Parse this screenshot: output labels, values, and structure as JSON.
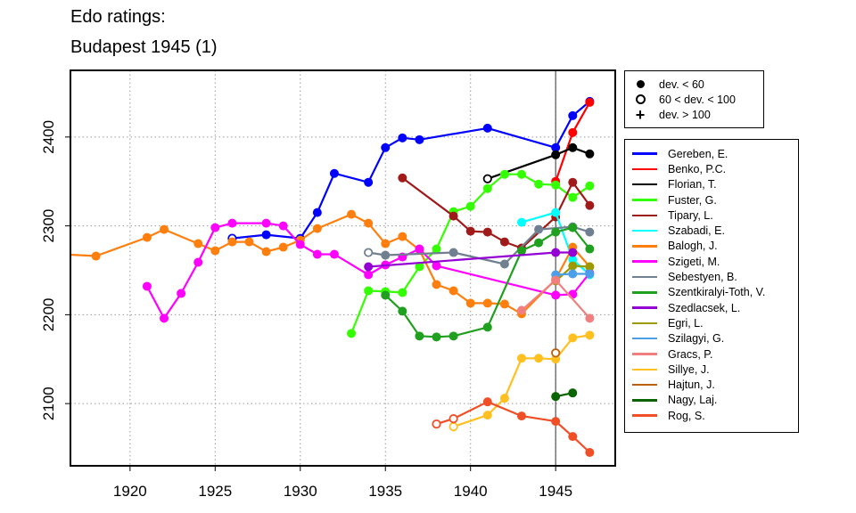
{
  "chart_data": {
    "type": "line",
    "title_lines": [
      "Edo ratings:",
      "Budapest 1945 (1)"
    ],
    "xlabel": "",
    "ylabel": "",
    "xlim": [
      1916.5,
      1948.5
    ],
    "ylim": [
      2030,
      2475
    ],
    "x_ticks": [
      1920,
      1925,
      1930,
      1935,
      1940,
      1945
    ],
    "y_ticks": [
      2100,
      2200,
      2300,
      2400
    ],
    "grid": "dotted",
    "event_year": 1945,
    "point_markers": {
      "filled": "dev. < 60",
      "open": "60 < dev. < 100",
      "plus": "dev. > 100"
    },
    "deviation_legend": [
      "dev. < 60",
      "60 < dev. < 100",
      "dev. > 100"
    ],
    "series": [
      {
        "name": "Gereben, E.",
        "color": "#0000ff",
        "points": [
          [
            1926,
            2286,
            "o"
          ],
          [
            1928,
            2290,
            "f"
          ],
          [
            1930,
            2286,
            "f"
          ],
          [
            1931,
            2315,
            "f"
          ],
          [
            1932,
            2359,
            "f"
          ],
          [
            1934,
            2349,
            "f"
          ],
          [
            1935,
            2388,
            "f"
          ],
          [
            1936,
            2399,
            "f"
          ],
          [
            1937,
            2397,
            "f"
          ],
          [
            1941,
            2410,
            "f"
          ],
          [
            1945,
            2388,
            "f"
          ],
          [
            1946,
            2424,
            "f"
          ],
          [
            1947,
            2440,
            "f"
          ]
        ]
      },
      {
        "name": "Benko, P.C.",
        "color": "#ff0000",
        "points": [
          [
            1945,
            2350,
            "f"
          ],
          [
            1946,
            2405,
            "f"
          ],
          [
            1947,
            2439,
            "f"
          ]
        ]
      },
      {
        "name": "Florian, T.",
        "color": "#000000",
        "points": [
          [
            1941,
            2353,
            "o"
          ],
          [
            1945,
            2380,
            "f"
          ],
          [
            1946,
            2388,
            "f"
          ],
          [
            1947,
            2381,
            "f"
          ]
        ]
      },
      {
        "name": "Fuster, G.",
        "color": "#33ff00",
        "points": [
          [
            1933,
            2179,
            "f"
          ],
          [
            1934,
            2227,
            "f"
          ],
          [
            1935,
            2226,
            "f"
          ],
          [
            1936,
            2225,
            "f"
          ],
          [
            1937,
            2254,
            "f"
          ],
          [
            1938,
            2274,
            "f"
          ],
          [
            1939,
            2316,
            "f"
          ],
          [
            1940,
            2322,
            "f"
          ],
          [
            1941,
            2342,
            "f"
          ],
          [
            1942,
            2358,
            "f"
          ],
          [
            1943,
            2358,
            "f"
          ],
          [
            1944,
            2347,
            "f"
          ],
          [
            1945,
            2346,
            "f"
          ],
          [
            1946,
            2332,
            "f"
          ],
          [
            1947,
            2345,
            "f"
          ]
        ]
      },
      {
        "name": "Tipary, L.",
        "color": "#a01a1a",
        "points": [
          [
            1936,
            2354,
            "f"
          ],
          [
            1939,
            2311,
            "f"
          ],
          [
            1940,
            2294,
            "f"
          ],
          [
            1941,
            2293,
            "f"
          ],
          [
            1942,
            2282,
            "f"
          ],
          [
            1943,
            2275,
            "f"
          ],
          [
            1945,
            2310,
            "f"
          ],
          [
            1946,
            2349,
            "f"
          ],
          [
            1947,
            2323,
            "f"
          ]
        ]
      },
      {
        "name": "Szabadi, E.",
        "color": "#00ffff",
        "points": [
          [
            1943,
            2304,
            "f"
          ],
          [
            1945,
            2315,
            "f"
          ],
          [
            1946,
            2262,
            "f"
          ],
          [
            1947,
            2245,
            "f"
          ]
        ]
      },
      {
        "name": "Balogh, J.",
        "color": "#ff7f0e",
        "points": [
          [
            1916,
            2268,
            "f"
          ],
          [
            1918,
            2266,
            "f"
          ],
          [
            1921,
            2287,
            "f"
          ],
          [
            1922,
            2296,
            "f"
          ],
          [
            1924,
            2280,
            "f"
          ],
          [
            1925,
            2272,
            "f"
          ],
          [
            1926,
            2282,
            "f"
          ],
          [
            1927,
            2282,
            "f"
          ],
          [
            1928,
            2271,
            "f"
          ],
          [
            1929,
            2276,
            "f"
          ],
          [
            1930,
            2284,
            "f"
          ],
          [
            1931,
            2297,
            "f"
          ],
          [
            1933,
            2313,
            "f"
          ],
          [
            1934,
            2303,
            "f"
          ],
          [
            1935,
            2280,
            "f"
          ],
          [
            1936,
            2288,
            "f"
          ],
          [
            1937,
            2273,
            "f"
          ],
          [
            1938,
            2234,
            "f"
          ],
          [
            1939,
            2227,
            "f"
          ],
          [
            1940,
            2213,
            "f"
          ],
          [
            1941,
            2213,
            "f"
          ],
          [
            1942,
            2212,
            "f"
          ],
          [
            1943,
            2201,
            "f"
          ],
          [
            1945,
            2240,
            "f"
          ],
          [
            1946,
            2276,
            "f"
          ],
          [
            1947,
            2254,
            "f"
          ]
        ]
      },
      {
        "name": "Szigeti, M.",
        "color": "#ff00ff",
        "points": [
          [
            1921,
            2232,
            "f"
          ],
          [
            1922,
            2196,
            "f"
          ],
          [
            1923,
            2224,
            "f"
          ],
          [
            1924,
            2259,
            "f"
          ],
          [
            1925,
            2298,
            "f"
          ],
          [
            1926,
            2303,
            "f"
          ],
          [
            1928,
            2303,
            "f"
          ],
          [
            1929,
            2300,
            "f"
          ],
          [
            1930,
            2279,
            "f"
          ],
          [
            1931,
            2268,
            "f"
          ],
          [
            1932,
            2268,
            "f"
          ],
          [
            1934,
            2245,
            "f"
          ],
          [
            1935,
            2256,
            "f"
          ],
          [
            1936,
            2265,
            "f"
          ],
          [
            1937,
            2274,
            "f"
          ],
          [
            1938,
            2255,
            "f"
          ],
          [
            1945,
            2222,
            "f"
          ],
          [
            1946,
            2223,
            "f"
          ],
          [
            1947,
            2247,
            "f"
          ]
        ]
      },
      {
        "name": "Sebestyen, B.",
        "color": "#708090",
        "points": [
          [
            1934,
            2270,
            "o"
          ],
          [
            1935,
            2267,
            "f"
          ],
          [
            1939,
            2270,
            "f"
          ],
          [
            1942,
            2257,
            "f"
          ],
          [
            1944,
            2296,
            "f"
          ],
          [
            1946,
            2299,
            "f"
          ],
          [
            1947,
            2293,
            "f"
          ]
        ]
      },
      {
        "name": "Szentkiralyi-Toth, V.",
        "color": "#1fa01f",
        "points": [
          [
            1935,
            2222,
            "f"
          ],
          [
            1936,
            2204,
            "f"
          ],
          [
            1937,
            2176,
            "f"
          ],
          [
            1938,
            2175,
            "f"
          ],
          [
            1939,
            2176,
            "f"
          ],
          [
            1941,
            2186,
            "f"
          ],
          [
            1943,
            2272,
            "f"
          ],
          [
            1944,
            2281,
            "f"
          ],
          [
            1945,
            2293,
            "f"
          ],
          [
            1946,
            2298,
            "f"
          ],
          [
            1947,
            2274,
            "f"
          ]
        ]
      },
      {
        "name": "Szedlacsek, L.",
        "color": "#9400d3",
        "points": [
          [
            1934,
            2254,
            "f"
          ],
          [
            1945,
            2270,
            "f"
          ],
          [
            1946,
            2270,
            "f"
          ]
        ]
      },
      {
        "name": "Egri, L.",
        "color": "#9b9b00",
        "points": [
          [
            1945,
            2238,
            "f"
          ],
          [
            1946,
            2255,
            "f"
          ],
          [
            1947,
            2254,
            "f"
          ]
        ]
      },
      {
        "name": "Szilagyi, G.",
        "color": "#4a9fe8",
        "points": [
          [
            1945,
            2245,
            "f"
          ],
          [
            1946,
            2246,
            "f"
          ],
          [
            1947,
            2246,
            "f"
          ]
        ]
      },
      {
        "name": "Gracs, P.",
        "color": "#f08080",
        "points": [
          [
            1943,
            2205,
            "f"
          ],
          [
            1945,
            2239,
            "f"
          ],
          [
            1947,
            2196,
            "f"
          ]
        ]
      },
      {
        "name": "Sillye, J.",
        "color": "#ffc020",
        "points": [
          [
            1939,
            2074,
            "o"
          ],
          [
            1941,
            2087,
            "f"
          ],
          [
            1942,
            2106,
            "f"
          ],
          [
            1943,
            2151,
            "f"
          ],
          [
            1944,
            2151,
            "f"
          ],
          [
            1945,
            2150,
            "f"
          ],
          [
            1946,
            2174,
            "f"
          ],
          [
            1947,
            2177,
            "f"
          ]
        ]
      },
      {
        "name": "Hajtun, J.",
        "color": "#b8600a",
        "points": [
          [
            1945,
            2157,
            "o"
          ]
        ]
      },
      {
        "name": "Nagy, Laj.",
        "color": "#0a6400",
        "points": [
          [
            1945,
            2108,
            "f"
          ],
          [
            1946,
            2112,
            "f"
          ]
        ]
      },
      {
        "name": "Rog, S.",
        "color": "#f04e26",
        "points": [
          [
            1938,
            2077,
            "o"
          ],
          [
            1939,
            2083,
            "o"
          ],
          [
            1941,
            2102,
            "f"
          ],
          [
            1943,
            2086,
            "f"
          ],
          [
            1945,
            2080,
            "f"
          ],
          [
            1946,
            2063,
            "f"
          ],
          [
            1947,
            2045,
            "f"
          ]
        ]
      }
    ]
  }
}
